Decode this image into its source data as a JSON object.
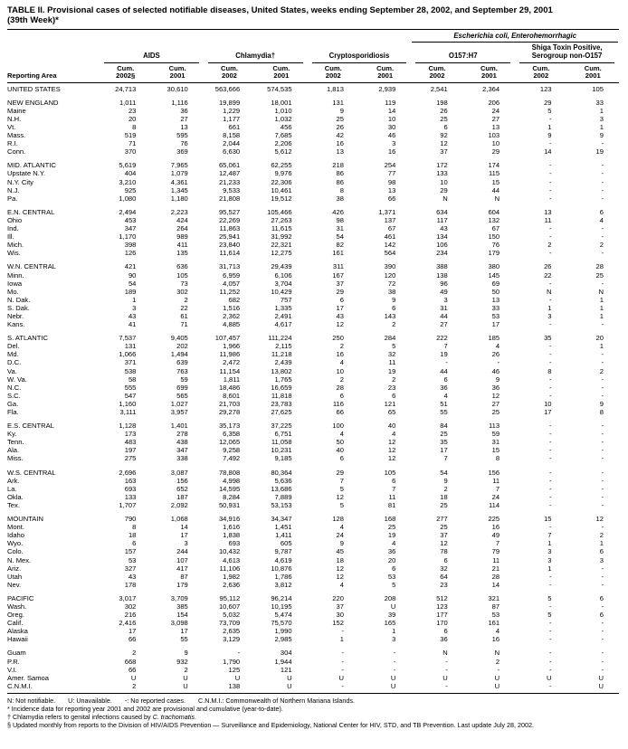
{
  "title": "TABLE II. Provisional cases of selected notifiable diseases, United States, weeks ending September 28, 2002, and September 29, 2001\n(39th Week)*",
  "table": {
    "ecoli_banner": "Escherichia coli, Enterohemorrhagic",
    "reporting_area_label": "Reporting Area",
    "group_columns": [
      {
        "label": "AIDS"
      },
      {
        "label": "Chlamydia†"
      },
      {
        "label": "Cryptosporidiosis"
      },
      {
        "label": "O157:H7"
      },
      {
        "label": "Shiga Toxin Positive, Serogroup non-O157"
      }
    ],
    "sub_columns": [
      "Cum.\n2002§",
      "Cum.\n2001",
      "Cum.\n2002",
      "Cum.\n2001",
      "Cum.\n2002",
      "Cum.\n2001",
      "Cum.\n2002",
      "Cum.\n2001",
      "Cum.\n2002",
      "Cum.\n2001"
    ],
    "groups": [
      {
        "rows": [
          [
            "UNITED STATES",
            "24,713",
            "30,610",
            "563,666",
            "574,535",
            "1,813",
            "2,939",
            "2,541",
            "2,364",
            "123",
            "105"
          ]
        ]
      },
      {
        "rows": [
          [
            "NEW ENGLAND",
            "1,011",
            "1,116",
            "19,899",
            "18,001",
            "131",
            "119",
            "198",
            "206",
            "29",
            "33"
          ],
          [
            "Maine",
            "23",
            "36",
            "1,229",
            "1,010",
            "9",
            "14",
            "26",
            "24",
            "5",
            "1"
          ],
          [
            "N.H.",
            "20",
            "27",
            "1,177",
            "1,032",
            "25",
            "10",
            "25",
            "27",
            "-",
            "3"
          ],
          [
            "Vt.",
            "8",
            "13",
            "661",
            "456",
            "26",
            "30",
            "6",
            "13",
            "1",
            "1"
          ],
          [
            "Mass.",
            "519",
            "595",
            "8,158",
            "7,685",
            "42",
            "46",
            "92",
            "103",
            "9",
            "9"
          ],
          [
            "R.I.",
            "71",
            "76",
            "2,044",
            "2,206",
            "16",
            "3",
            "12",
            "10",
            "-",
            "-"
          ],
          [
            "Conn.",
            "370",
            "369",
            "6,630",
            "5,612",
            "13",
            "16",
            "37",
            "29",
            "14",
            "19"
          ]
        ]
      },
      {
        "rows": [
          [
            "MID. ATLANTIC",
            "5,619",
            "7,965",
            "65,061",
            "62,255",
            "218",
            "254",
            "172",
            "174",
            "-",
            "-"
          ],
          [
            "Upstate N.Y.",
            "404",
            "1,079",
            "12,487",
            "9,976",
            "86",
            "77",
            "133",
            "115",
            "-",
            "-"
          ],
          [
            "N.Y. City",
            "3,210",
            "4,361",
            "21,233",
            "22,306",
            "86",
            "98",
            "10",
            "15",
            "-",
            "-"
          ],
          [
            "N.J.",
            "925",
            "1,345",
            "9,533",
            "10,461",
            "8",
            "13",
            "29",
            "44",
            "-",
            "-"
          ],
          [
            "Pa.",
            "1,080",
            "1,180",
            "21,808",
            "19,512",
            "38",
            "66",
            "N",
            "N",
            "-",
            "-"
          ]
        ]
      },
      {
        "rows": [
          [
            "E.N. CENTRAL",
            "2,494",
            "2,223",
            "95,527",
            "105,466",
            "426",
            "1,371",
            "634",
            "604",
            "13",
            "6"
          ],
          [
            "Ohio",
            "453",
            "424",
            "22,269",
            "27,263",
            "98",
            "137",
            "117",
            "132",
            "11",
            "4"
          ],
          [
            "Ind.",
            "347",
            "264",
            "11,863",
            "11,615",
            "31",
            "67",
            "43",
            "67",
            "-",
            "-"
          ],
          [
            "Ill.",
            "1,170",
            "989",
            "25,941",
            "31,992",
            "54",
            "461",
            "134",
            "150",
            "-",
            "-"
          ],
          [
            "Mich.",
            "398",
            "411",
            "23,840",
            "22,321",
            "82",
            "142",
            "106",
            "76",
            "2",
            "2"
          ],
          [
            "Wis.",
            "126",
            "135",
            "11,614",
            "12,275",
            "161",
            "564",
            "234",
            "179",
            "-",
            "-"
          ]
        ]
      },
      {
        "rows": [
          [
            "W.N. CENTRAL",
            "421",
            "636",
            "31,713",
            "29,439",
            "311",
            "390",
            "388",
            "380",
            "26",
            "28"
          ],
          [
            "Minn.",
            "90",
            "105",
            "6,959",
            "6,106",
            "167",
            "120",
            "138",
            "145",
            "22",
            "25"
          ],
          [
            "Iowa",
            "54",
            "73",
            "4,057",
            "3,704",
            "37",
            "72",
            "96",
            "69",
            "-",
            "-"
          ],
          [
            "Mo.",
            "189",
            "302",
            "11,252",
            "10,429",
            "29",
            "38",
            "49",
            "50",
            "N",
            "N"
          ],
          [
            "N. Dak.",
            "1",
            "2",
            "682",
            "757",
            "6",
            "9",
            "3",
            "13",
            "-",
            "1"
          ],
          [
            "S. Dak.",
            "3",
            "22",
            "1,516",
            "1,335",
            "17",
            "6",
            "31",
            "33",
            "1",
            "1"
          ],
          [
            "Nebr.",
            "43",
            "61",
            "2,362",
            "2,491",
            "43",
            "143",
            "44",
            "53",
            "3",
            "1"
          ],
          [
            "Kans.",
            "41",
            "71",
            "4,885",
            "4,617",
            "12",
            "2",
            "27",
            "17",
            "-",
            "-"
          ]
        ]
      },
      {
        "rows": [
          [
            "S. ATLANTIC",
            "7,537",
            "9,405",
            "107,457",
            "111,224",
            "250",
            "284",
            "222",
            "185",
            "35",
            "20"
          ],
          [
            "Del.",
            "131",
            "202",
            "1,966",
            "2,115",
            "2",
            "5",
            "7",
            "4",
            "-",
            "1"
          ],
          [
            "Md.",
            "1,066",
            "1,494",
            "11,986",
            "11,218",
            "16",
            "32",
            "19",
            "26",
            "-",
            "-"
          ],
          [
            "D.C.",
            "371",
            "639",
            "2,472",
            "2,439",
            "4",
            "11",
            "-",
            "-",
            "-",
            "-"
          ],
          [
            "Va.",
            "538",
            "763",
            "11,154",
            "13,802",
            "10",
            "19",
            "44",
            "46",
            "8",
            "2"
          ],
          [
            "W. Va.",
            "58",
            "59",
            "1,811",
            "1,765",
            "2",
            "2",
            "6",
            "9",
            "-",
            "-"
          ],
          [
            "N.C.",
            "555",
            "699",
            "18,486",
            "16,659",
            "28",
            "23",
            "36",
            "36",
            "-",
            "-"
          ],
          [
            "S.C.",
            "547",
            "565",
            "8,601",
            "11,818",
            "6",
            "6",
            "4",
            "12",
            "-",
            "-"
          ],
          [
            "Ga.",
            "1,160",
            "1,027",
            "21,703",
            "23,783",
            "116",
            "121",
            "51",
            "27",
            "10",
            "9"
          ],
          [
            "Fla.",
            "3,111",
            "3,957",
            "29,278",
            "27,625",
            "66",
            "65",
            "55",
            "25",
            "17",
            "8"
          ]
        ]
      },
      {
        "rows": [
          [
            "E.S. CENTRAL",
            "1,128",
            "1,401",
            "35,173",
            "37,225",
            "100",
            "40",
            "84",
            "113",
            "-",
            "-"
          ],
          [
            "Ky.",
            "173",
            "278",
            "6,358",
            "6,751",
            "4",
            "4",
            "25",
            "59",
            "-",
            "-"
          ],
          [
            "Tenn.",
            "483",
            "438",
            "12,065",
            "11,058",
            "50",
            "12",
            "35",
            "31",
            "-",
            "-"
          ],
          [
            "Ala.",
            "197",
            "347",
            "9,258",
            "10,231",
            "40",
            "12",
            "17",
            "15",
            "-",
            "-"
          ],
          [
            "Miss.",
            "275",
            "338",
            "7,492",
            "9,185",
            "6",
            "12",
            "7",
            "8",
            "-",
            "-"
          ]
        ]
      },
      {
        "rows": [
          [
            "W.S. CENTRAL",
            "2,696",
            "3,087",
            "78,808",
            "80,364",
            "29",
            "105",
            "54",
            "156",
            "-",
            "-"
          ],
          [
            "Ark.",
            "163",
            "156",
            "4,998",
            "5,636",
            "7",
            "6",
            "9",
            "11",
            "-",
            "-"
          ],
          [
            "La.",
            "693",
            "652",
            "14,595",
            "13,686",
            "5",
            "7",
            "2",
            "7",
            "-",
            "-"
          ],
          [
            "Okla.",
            "133",
            "187",
            "8,284",
            "7,889",
            "12",
            "11",
            "18",
            "24",
            "-",
            "-"
          ],
          [
            "Tex.",
            "1,707",
            "2,092",
            "50,931",
            "53,153",
            "5",
            "81",
            "25",
            "114",
            "-",
            "-"
          ]
        ]
      },
      {
        "rows": [
          [
            "MOUNTAIN",
            "790",
            "1,068",
            "34,916",
            "34,347",
            "128",
            "168",
            "277",
            "225",
            "15",
            "12"
          ],
          [
            "Mont.",
            "8",
            "14",
            "1,616",
            "1,451",
            "4",
            "25",
            "25",
            "16",
            "-",
            "-"
          ],
          [
            "Idaho",
            "18",
            "17",
            "1,838",
            "1,411",
            "24",
            "19",
            "37",
            "49",
            "7",
            "2"
          ],
          [
            "Wyo.",
            "6",
            "3",
            "693",
            "605",
            "9",
            "4",
            "12",
            "7",
            "1",
            "1"
          ],
          [
            "Colo.",
            "157",
            "244",
            "10,432",
            "9,787",
            "45",
            "36",
            "78",
            "79",
            "3",
            "6"
          ],
          [
            "N. Mex.",
            "53",
            "107",
            "4,613",
            "4,619",
            "18",
            "20",
            "6",
            "11",
            "3",
            "3"
          ],
          [
            "Ariz.",
            "327",
            "417",
            "11,106",
            "10,876",
            "12",
            "6",
            "32",
            "21",
            "1",
            "-"
          ],
          [
            "Utah",
            "43",
            "87",
            "1,982",
            "1,786",
            "12",
            "53",
            "64",
            "28",
            "-",
            "-"
          ],
          [
            "Nev.",
            "178",
            "179",
            "2,636",
            "3,812",
            "4",
            "5",
            "23",
            "14",
            "-",
            "-"
          ]
        ]
      },
      {
        "rows": [
          [
            "PACIFIC",
            "3,017",
            "3,709",
            "95,112",
            "96,214",
            "220",
            "208",
            "512",
            "321",
            "5",
            "6"
          ],
          [
            "Wash.",
            "302",
            "385",
            "10,607",
            "10,195",
            "37",
            "U",
            "123",
            "87",
            "-",
            "-"
          ],
          [
            "Oreg.",
            "216",
            "154",
            "5,032",
            "5,474",
            "30",
            "39",
            "177",
            "53",
            "5",
            "6"
          ],
          [
            "Calif.",
            "2,416",
            "3,098",
            "73,709",
            "75,570",
            "152",
            "165",
            "170",
            "161",
            "-",
            "-"
          ],
          [
            "Alaska",
            "17",
            "17",
            "2,635",
            "1,990",
            "-",
            "1",
            "6",
            "4",
            "-",
            "-"
          ],
          [
            "Hawaii",
            "66",
            "55",
            "3,129",
            "2,985",
            "1",
            "3",
            "36",
            "16",
            "-",
            "-"
          ]
        ]
      },
      {
        "rows": [
          [
            "Guam",
            "2",
            "9",
            "-",
            "304",
            "-",
            "-",
            "N",
            "N",
            "-",
            "-"
          ],
          [
            "P.R.",
            "668",
            "932",
            "1,790",
            "1,944",
            "-",
            "-",
            "-",
            "2",
            "-",
            "-"
          ],
          [
            "V.I.",
            "66",
            "2",
            "125",
            "121",
            "-",
            "-",
            "-",
            "-",
            "-",
            "-"
          ],
          [
            "Amer. Samoa",
            "U",
            "U",
            "U",
            "U",
            "U",
            "U",
            "U",
            "U",
            "U",
            "U"
          ],
          [
            "C.N.M.I.",
            "2",
            "U",
            "138",
            "U",
            "-",
            "U",
            "-",
            "U",
            "-",
            "U"
          ]
        ]
      }
    ]
  },
  "footnotes": {
    "legend": [
      "N: Not notifiable.",
      "U: Unavailable.",
      "-: No reported cases.",
      "C.N.M.I.: Commonwealth of Northern Mariana Islands."
    ],
    "incidence": "* Incidence data for reporting year 2001 and 2002 are provisional and cumulative (year-to-date).",
    "chlamydia_prefix": "† Chlamydia refers to genital infections caused by ",
    "chlamydia_species": "C. trachomatis",
    "chlamydia_suffix": ".",
    "updated": "§ Updated monthly from reports to the Division of HIV/AIDS Prevention — Surveillance and Epidemiology, National Center for HIV, STD, and TB Prevention. Last update July 28, 2002."
  }
}
